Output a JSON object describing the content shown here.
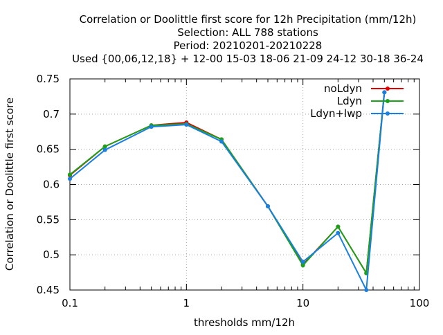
{
  "chart_data": {
    "type": "line",
    "title_lines": [
      "Correlation or Doolittle first score  for 12h Precipitation (mm/12h)",
      "Selection: ALL    788 stations",
      "Period: 20210201-20210228",
      "Used {00,06,12,18} + 12-00 15-03 18-06 21-09 24-12 30-18 36-24"
    ],
    "xlabel": "thresholds mm/12h",
    "ylabel": "Correlation or Doolittle first score",
    "xscale": "log",
    "xlim": [
      0.1,
      100
    ],
    "ylim": [
      0.45,
      0.75
    ],
    "x_ticks": [
      0.1,
      1,
      10,
      100
    ],
    "x_tick_labels": [
      "0.1",
      "1",
      "10",
      "100"
    ],
    "y_ticks": [
      0.45,
      0.5,
      0.55,
      0.6,
      0.65,
      0.7,
      0.75
    ],
    "y_tick_labels": [
      "0.45",
      "0.5",
      "0.55",
      "0.6",
      "0.65",
      "0.7",
      "0.75"
    ],
    "grid": true,
    "legend_position": "top-right",
    "x": [
      0.1,
      0.2,
      0.5,
      1,
      2,
      5,
      10,
      20,
      35,
      50
    ],
    "series": [
      {
        "name": "noLdyn",
        "color": "#e00000",
        "values": [
          0.613,
          0.654,
          0.684,
          0.688,
          0.664,
          0.569,
          0.486,
          0.54,
          0.474,
          0.731
        ]
      },
      {
        "name": "Ldyn",
        "color": "#1aa31a",
        "values": [
          0.614,
          0.654,
          0.684,
          0.686,
          0.664,
          0.569,
          0.485,
          0.54,
          0.474,
          0.731
        ]
      },
      {
        "name": "Ldyn+lwp",
        "color": "#1a7fe0",
        "values": [
          0.608,
          0.649,
          0.682,
          0.685,
          0.661,
          0.569,
          0.49,
          0.531,
          0.45,
          0.731
        ]
      }
    ]
  }
}
